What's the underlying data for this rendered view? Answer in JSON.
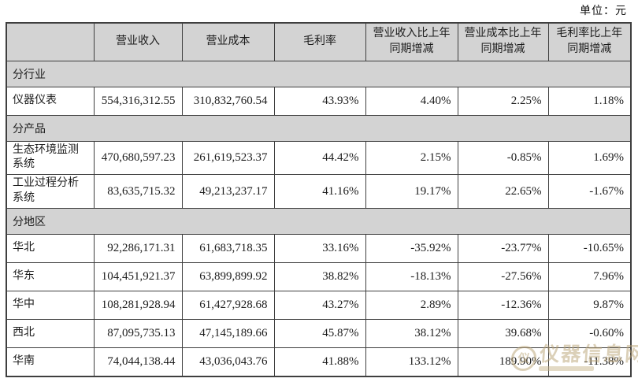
{
  "page": {
    "unit_label": "单位：元"
  },
  "table": {
    "columns": {
      "corner": "",
      "revenue": "营业收入",
      "cost": "营业成本",
      "margin": "毛利率",
      "revenue_yoy": "营业收入比上年同期增减",
      "cost_yoy": "营业成本比上年同期增减",
      "margin_yoy": "毛利率比上年同期增减"
    },
    "sections": [
      {
        "label": "分行业",
        "rows": [
          {
            "label": "仪器仪表",
            "values": [
              "554,316,312.55",
              "310,832,760.54",
              "43.93%",
              "4.40%",
              "2.25%",
              "1.18%"
            ]
          }
        ]
      },
      {
        "label": "分产品",
        "rows": [
          {
            "label": "生态环境监测系统",
            "values": [
              "470,680,597.23",
              "261,619,523.37",
              "44.42%",
              "2.15%",
              "-0.85%",
              "1.69%"
            ]
          },
          {
            "label": "工业过程分析系统",
            "values": [
              "83,635,715.32",
              "49,213,237.17",
              "41.16%",
              "19.17%",
              "22.65%",
              "-1.67%"
            ]
          }
        ]
      },
      {
        "label": "分地区",
        "rows": [
          {
            "label": "华北",
            "values": [
              "92,286,171.31",
              "61,683,718.35",
              "33.16%",
              "-35.92%",
              "-23.77%",
              "-10.65%"
            ]
          },
          {
            "label": "华东",
            "values": [
              "104,451,921.37",
              "63,899,899.92",
              "38.82%",
              "-18.13%",
              "-27.56%",
              "7.96%"
            ]
          },
          {
            "label": "华中",
            "values": [
              "108,281,928.94",
              "61,427,928.68",
              "43.27%",
              "2.89%",
              "-12.36%",
              "9.87%"
            ]
          },
          {
            "label": "西北",
            "values": [
              "87,095,735.13",
              "47,145,189.66",
              "45.87%",
              "38.12%",
              "39.68%",
              "-0.60%"
            ]
          },
          {
            "label": "华南",
            "values": [
              "74,044,138.44",
              "43,036,043.76",
              "41.88%",
              "133.12%",
              "189.90%",
              "-11.38%"
            ]
          }
        ]
      }
    ]
  },
  "watermark": {
    "logo_char": "仪",
    "text": "仪器信息网",
    "color": "#b9a274"
  }
}
